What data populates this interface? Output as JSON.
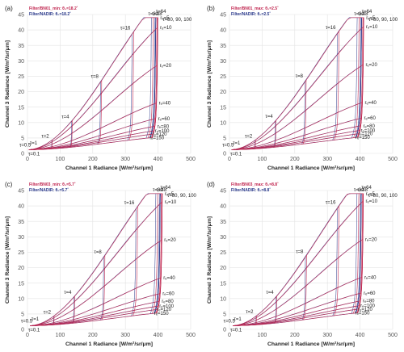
{
  "chart_data": [
    {
      "type": "line",
      "panel_label": "(a)",
      "legend_red": "Filter/BN01_min: θ₀=18.2˚",
      "legend_blue": "Filter/NADIR: θ₀=18.2˚",
      "xlabel": "Channel 1 Radiance [W/m²/sr/μm]",
      "ylabel": "Channel 3 Radiance [W/m²/sr/μm]",
      "xlim": [
        0,
        500
      ],
      "ylim": [
        0,
        45
      ],
      "xticks": [
        0,
        100,
        200,
        300,
        400,
        500
      ],
      "yticks": [
        0,
        5,
        10,
        15,
        20,
        25,
        30,
        35,
        40,
        45
      ],
      "xscale": 400,
      "yscale": 38,
      "wave": 0,
      "tau_labels": [
        "τ=0.1",
        "τ=0.5",
        "τ=1",
        "τ=2",
        "τ=4",
        "τ=8",
        "τ=16",
        "τ=32",
        "τ=48",
        "τ=64",
        "τ=80, 90, 100"
      ],
      "re_labels": [
        "rₑ=5",
        "rₑ=10",
        "rₑ=20",
        "rₑ=40",
        "rₑ=60",
        "rₑ=80",
        "rₑ=100",
        "rₑ=120",
        "rₑ=150"
      ]
    },
    {
      "type": "line",
      "panel_label": "(b)",
      "legend_red": "Filter/BN01_max: θ₀=2.5˚",
      "legend_blue": "Filter/NADIR: θ₀=2.5˚",
      "xlabel": "Channel 1 Radiance [W/m²/sr/μm]",
      "ylabel": "Channel 3 Radiance [W/m²/sr/μm]",
      "xlim": [
        0,
        500
      ],
      "ylim": [
        0,
        45
      ],
      "xticks": [
        0,
        100,
        200,
        300,
        400,
        500
      ],
      "yticks": [
        0,
        5,
        10,
        15,
        20,
        25,
        30,
        35,
        40,
        45
      ],
      "xscale": 410,
      "yscale": 38,
      "wave": 1,
      "tau_labels": [
        "τ=0.1",
        "τ=0.5",
        "τ=1",
        "τ=2",
        "τ=4",
        "τ=8",
        "τ=16",
        "τ=32",
        "τ=48",
        "τ=64",
        "τ=80, 90, 100"
      ],
      "re_labels": [
        "rₑ=5",
        "rₑ=10",
        "rₑ=20",
        "rₑ=40",
        "rₑ=60",
        "rₑ=80",
        "rₑ=100",
        "rₑ=120",
        "rₑ=150"
      ]
    },
    {
      "type": "line",
      "panel_label": "(c)",
      "legend_red": "Filter/BN03_min: θ₀=5.7˚",
      "legend_blue": "Filter/NADIR: θ₀=5.7˚",
      "xlabel": "Channel 1 Radiance [W/m²/sr/μm]",
      "ylabel": "Channel 3 Radiance [W/m²/sr/μm]",
      "xlim": [
        0,
        500
      ],
      "ylim": [
        0,
        45
      ],
      "xticks": [
        0,
        100,
        200,
        300,
        400,
        500
      ],
      "yticks": [
        0,
        5,
        10,
        15,
        20,
        25,
        30,
        35,
        40,
        45
      ],
      "xscale": 410,
      "yscale": 38,
      "wave": 2,
      "tau_labels": [
        "τ=0.1",
        "τ=0.5",
        "τ=1",
        "τ=2",
        "τ=4",
        "τ=8",
        "τ=16",
        "τ=32",
        "τ=48",
        "τ=64",
        "τ=80, 90, 100"
      ],
      "re_labels": [
        "rₑ=5",
        "rₑ=10",
        "rₑ=20",
        "rₑ=40",
        "rₑ=60",
        "rₑ=80",
        "rₑ=100",
        "rₑ=120",
        "rₑ=150"
      ]
    },
    {
      "type": "line",
      "panel_label": "(d)",
      "legend_red": "Filter/BN03_max: θ₀=8.8˚",
      "legend_blue": "Filter/NADIR: θ₀=8.8˚",
      "xlabel": "Channel 1 Radiance [W/m²/sr/μm]",
      "ylabel": "Channel 3 Radiance [W/m²/sr/μm]",
      "xlim": [
        0,
        500
      ],
      "ylim": [
        0,
        45
      ],
      "xticks": [
        0,
        100,
        200,
        300,
        400,
        500
      ],
      "yticks": [
        0,
        5,
        10,
        15,
        20,
        25,
        30,
        35,
        40,
        45
      ],
      "xscale": 405,
      "yscale": 38,
      "wave": 3,
      "tau_labels": [
        "τ=0.1",
        "τ=0.5",
        "τ=1",
        "τ=2",
        "τ=4",
        "τ=8",
        "τ=16",
        "τ=32",
        "τ=48",
        "τ=64",
        "τ=80, 90, 100"
      ],
      "re_labels": [
        "rₑ=5",
        "rₑ=10",
        "rₑ=20",
        "rₑ=40",
        "rₑ=60",
        "rₑ=80",
        "rₑ=100",
        "rₑ=120",
        "rₑ=150"
      ]
    }
  ],
  "colors": {
    "red": "#c0244e",
    "blue": "#2b3a8c",
    "purple": "#7a2f7a",
    "grid": "#e3e3e3",
    "axis_text": "#555555",
    "label_text": "#222222"
  }
}
